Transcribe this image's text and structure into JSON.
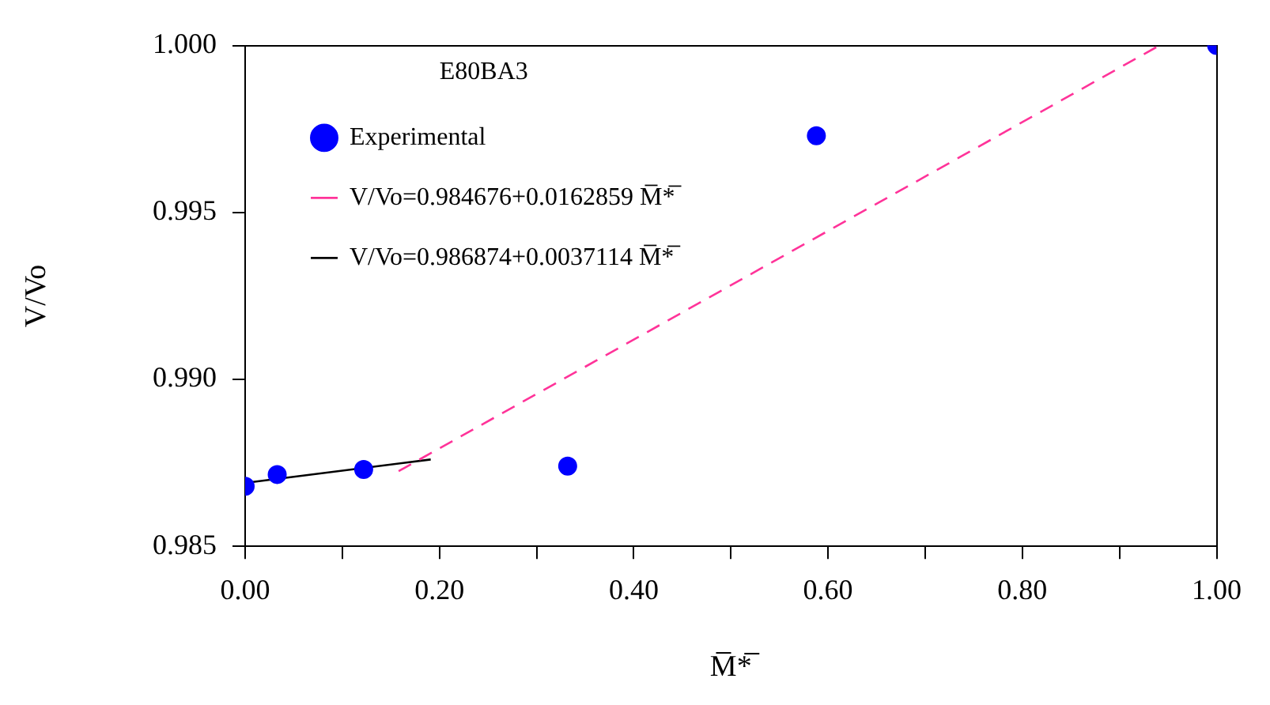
{
  "chart_data": {
    "type": "scatter",
    "xlabel": "M̅*̅",
    "ylabel": "V/Vo",
    "legend_title": "E80BA3",
    "legend": "top left",
    "marker": "circle",
    "grid": false,
    "xlim": [
      0,
      1
    ],
    "ylim": [
      0.985,
      1.0
    ],
    "xticks": [
      {
        "value": 0,
        "label": "0.00"
      },
      {
        "value": 0.1,
        "label": null
      },
      {
        "value": 0.2,
        "label": "0.20"
      },
      {
        "value": 0.3,
        "label": null
      },
      {
        "value": 0.4,
        "label": "0.40"
      },
      {
        "value": 0.5,
        "label": null
      },
      {
        "value": 0.6,
        "label": "0.60"
      },
      {
        "value": 0.7,
        "label": null
      },
      {
        "value": 0.8,
        "label": "0.80"
      },
      {
        "value": 0.9,
        "label": null
      },
      {
        "value": 1,
        "label": "1.00"
      }
    ],
    "yticks": [
      {
        "value": 0.985,
        "label": "0.985"
      },
      {
        "value": 0.99,
        "label": "0.990"
      },
      {
        "value": 0.995,
        "label": "0.995"
      },
      {
        "value": 1.0,
        "label": "1.000"
      }
    ],
    "series": [
      {
        "name": "Experimental",
        "color": "#0000ff",
        "x": [
          0,
          0.033,
          0.122,
          0.332,
          0.588,
          1.0
        ],
        "values": [
          0.9868,
          0.98715,
          0.9873,
          0.9874,
          0.9973,
          1.0
        ]
      },
      {
        "type": "line",
        "name": "V/Vo=0.984676+0.0162859 M̅*̅",
        "color": "#ff3399",
        "line_style": "dashed",
        "marker": "none",
        "x": [
          0.158,
          0.941
        ],
        "values": [
          0.98725,
          1.0
        ]
      },
      {
        "type": "line",
        "name": "V/Vo=0.986874+0.0037114 M̅*̅",
        "color": "#000000",
        "line_style": "solid",
        "marker": "none",
        "x": [
          0,
          0.191
        ],
        "values": [
          0.9869,
          0.9876
        ]
      }
    ]
  }
}
